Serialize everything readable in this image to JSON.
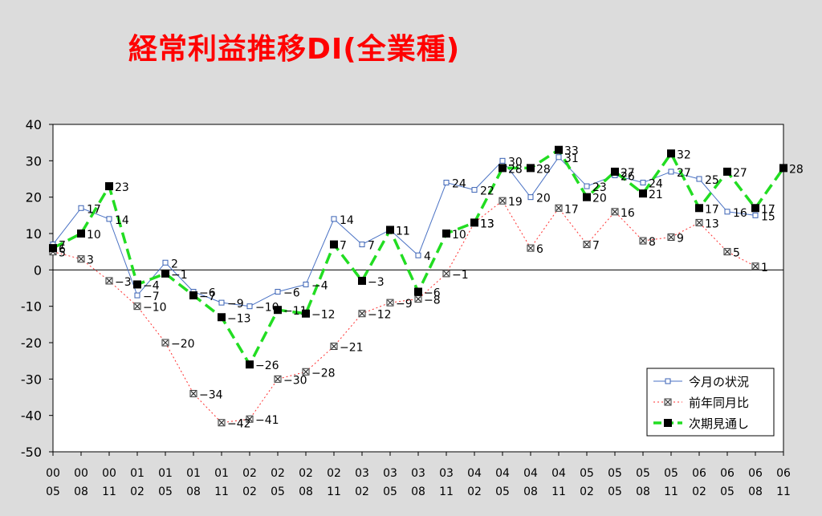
{
  "title": "経常利益推移DI(全業種)",
  "chart_data": {
    "type": "line",
    "title": "経常利益推移DI(全業種)",
    "xlabel": "",
    "ylabel": "",
    "ylim": [
      -50,
      40
    ],
    "yticks": [
      40,
      30,
      20,
      10,
      0,
      -10,
      -20,
      -30,
      -40,
      -50
    ],
    "grid": false,
    "legend_position": "bottom-right",
    "categories": [
      [
        "00",
        "05"
      ],
      [
        "00",
        "08"
      ],
      [
        "00",
        "11"
      ],
      [
        "01",
        "02"
      ],
      [
        "01",
        "05"
      ],
      [
        "01",
        "08"
      ],
      [
        "01",
        "11"
      ],
      [
        "02",
        "02"
      ],
      [
        "02",
        "05"
      ],
      [
        "02",
        "08"
      ],
      [
        "02",
        "11"
      ],
      [
        "03",
        "02"
      ],
      [
        "03",
        "05"
      ],
      [
        "03",
        "08"
      ],
      [
        "03",
        "11"
      ],
      [
        "04",
        "02"
      ],
      [
        "04",
        "05"
      ],
      [
        "04",
        "08"
      ],
      [
        "04",
        "11"
      ],
      [
        "05",
        "02"
      ],
      [
        "05",
        "05"
      ],
      [
        "05",
        "08"
      ],
      [
        "05",
        "11"
      ],
      [
        "06",
        "02"
      ],
      [
        "06",
        "05"
      ],
      [
        "06",
        "08"
      ],
      [
        "06",
        "11"
      ]
    ],
    "series": [
      {
        "name": "今月の状況",
        "color": "#4a72c4",
        "style": "solid-thin",
        "marker": "open-square",
        "values": [
          7,
          17,
          14,
          -7,
          2,
          -6,
          -9,
          -10,
          -6,
          -4,
          14,
          7,
          11,
          4,
          24,
          22,
          30,
          20,
          31,
          23,
          26,
          24,
          27,
          25,
          16,
          15,
          null
        ]
      },
      {
        "name": "前年同月比",
        "color": "#ff3030",
        "style": "dotted",
        "marker": "x-square",
        "values": [
          5,
          3,
          -3,
          -10,
          -20,
          -34,
          -42,
          -41,
          -30,
          -28,
          -21,
          -12,
          -9,
          -8,
          -1,
          13,
          19,
          6,
          17,
          7,
          16,
          8,
          9,
          13,
          5,
          1,
          null
        ]
      },
      {
        "name": "次期見通し",
        "color": "#22dd22",
        "style": "dashed-thick",
        "marker": "filled-square",
        "values": [
          6,
          10,
          23,
          -4,
          -1,
          -7,
          -13,
          -26,
          -11,
          -12,
          7,
          -3,
          11,
          -6,
          10,
          13,
          28,
          28,
          33,
          20,
          27,
          21,
          32,
          17,
          27,
          17,
          28
        ]
      }
    ]
  }
}
